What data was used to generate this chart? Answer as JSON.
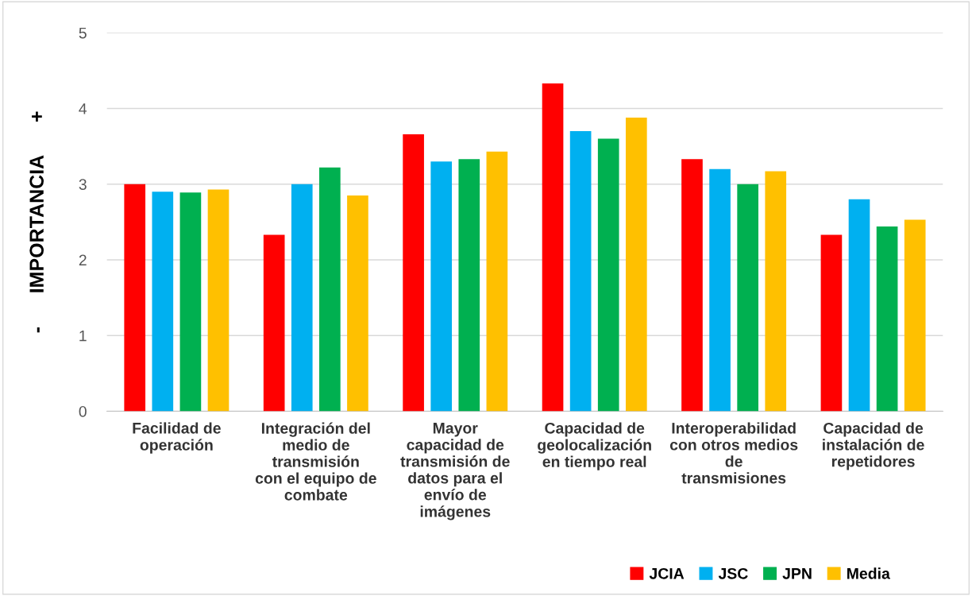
{
  "chart_data": {
    "type": "bar",
    "ylabel": "-      IMPORTANCIA      +",
    "categories": [
      "Facilidad de\noperación",
      "Integración del\nmedio de\ntransmisión\ncon el equipo de\ncombate",
      "Mayor\ncapacidad de\ntransmisión de\ndatos para el\nenvío de\nimágenes",
      "Capacidad de\ngeolocalización\nen tiempo real",
      "Interoperabilidad\ncon otros medios\nde\ntransmisiones",
      "Capacidad de\ninstalación de\nrepetidores"
    ],
    "series": [
      {
        "name": "JCIA",
        "color": "#ff0000",
        "values": [
          3.0,
          2.33,
          3.66,
          4.33,
          3.33,
          2.33
        ]
      },
      {
        "name": "JSC",
        "color": "#00b0f0",
        "values": [
          2.9,
          3.0,
          3.3,
          3.7,
          3.2,
          2.8
        ]
      },
      {
        "name": "JPN",
        "color": "#00b050",
        "values": [
          2.89,
          3.22,
          3.33,
          3.6,
          3.0,
          2.44
        ]
      },
      {
        "name": "Media",
        "color": "#ffc000",
        "values": [
          2.93,
          2.85,
          3.43,
          3.88,
          3.17,
          2.53
        ]
      }
    ],
    "ylim": [
      0,
      5
    ],
    "yticks": [
      0,
      1,
      2,
      3,
      4,
      5
    ],
    "grid": "y",
    "legend": "bottom right"
  }
}
